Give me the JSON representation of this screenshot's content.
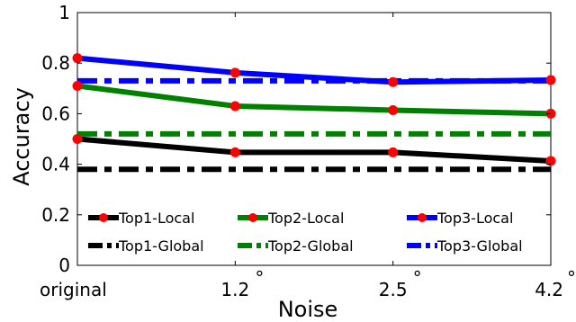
{
  "chart_data": {
    "type": "line",
    "xlabel": "Noise",
    "ylabel": "Accuracy",
    "categories": [
      "original",
      "1.2",
      "2.5",
      "4.2"
    ],
    "degree_symbol": "°",
    "ylim": [
      0,
      1
    ],
    "yticks": [
      "0",
      "0.2",
      "0.4",
      "0.6",
      "0.8",
      "1"
    ],
    "grid": false,
    "series": [
      {
        "name": "Top1-Local",
        "values": [
          0.5,
          0.447,
          0.447,
          0.413
        ],
        "color": "#000000",
        "style": "solid",
        "marker": "circle"
      },
      {
        "name": "Top2-Local",
        "values": [
          0.71,
          0.63,
          0.614,
          0.6
        ],
        "color": "#008000",
        "style": "solid",
        "marker": "circle"
      },
      {
        "name": "Top3-Local",
        "values": [
          0.82,
          0.762,
          0.725,
          0.733
        ],
        "color": "#0000ff",
        "style": "solid",
        "marker": "circle"
      },
      {
        "name": "Top1-Global",
        "values": [
          0.38,
          0.38,
          0.38,
          0.38
        ],
        "color": "#000000",
        "style": "dashdot",
        "marker": "none"
      },
      {
        "name": "Top2-Global",
        "values": [
          0.52,
          0.52,
          0.52,
          0.52
        ],
        "color": "#008000",
        "style": "dashdot",
        "marker": "none"
      },
      {
        "name": "Top3-Global",
        "values": [
          0.73,
          0.73,
          0.73,
          0.73
        ],
        "color": "#0000ff",
        "style": "dashdot",
        "marker": "none"
      }
    ],
    "marker_color": "#ff0000",
    "legend_placement": "bottom, inside plot"
  }
}
